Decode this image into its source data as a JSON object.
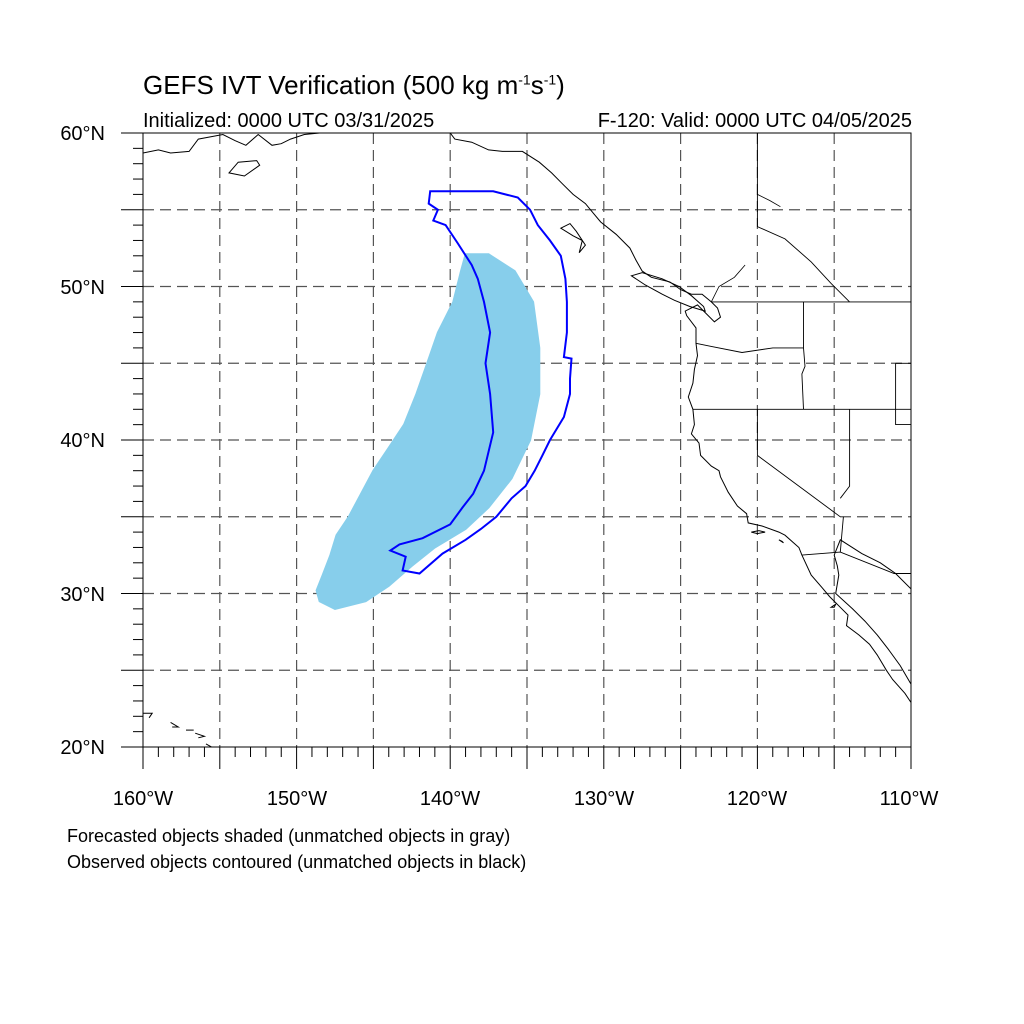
{
  "title": {
    "main": "GEFS IVT Verification (500 kg m",
    "exp1": "-1",
    "mid": "s",
    "exp2": "-1",
    "end": ")"
  },
  "initialized": "Initialized: 0000 UTC 03/31/2025",
  "valid": "F-120: Valid: 0000 UTC 04/05/2025",
  "lat_labels": [
    "60°N",
    "50°N",
    "40°N",
    "30°N",
    "20°N"
  ],
  "lon_labels": [
    "160°W",
    "150°W",
    "140°W",
    "130°W",
    "120°W",
    "110°W"
  ],
  "captions": {
    "forecast": "Forecasted objects shaded (unmatched objects in gray)",
    "observed": "Observed objects contoured (unmatched objects in black)"
  },
  "map": {
    "lat_range": [
      20,
      60
    ],
    "lon_range": [
      -160,
      -110
    ],
    "grid": true,
    "forecast_color": "#87ceeb",
    "observed_color": "#0000ff",
    "forecast_object": [
      [
        -148.5,
        29.5
      ],
      [
        -147.5,
        29
      ],
      [
        -145.5,
        29.5
      ],
      [
        -144,
        30.5
      ],
      [
        -142.5,
        31.8
      ],
      [
        -141,
        33
      ],
      [
        -139,
        34.2
      ],
      [
        -137.5,
        35.6
      ],
      [
        -136,
        37.5
      ],
      [
        -134.8,
        40
      ],
      [
        -134.2,
        43
      ],
      [
        -134.2,
        46
      ],
      [
        -134.6,
        49
      ],
      [
        -135.8,
        51
      ],
      [
        -137.5,
        52.1
      ],
      [
        -139,
        52.1
      ],
      [
        -139.3,
        51
      ],
      [
        -139.8,
        49
      ],
      [
        -140.8,
        47
      ],
      [
        -141.5,
        45
      ],
      [
        -142.2,
        43
      ],
      [
        -143,
        41
      ],
      [
        -144,
        39.5
      ],
      [
        -145,
        38
      ],
      [
        -145.8,
        36.5
      ],
      [
        -146.6,
        35
      ],
      [
        -147.4,
        33.8
      ],
      [
        -147.8,
        32.5
      ],
      [
        -148.3,
        31.2
      ],
      [
        -148.7,
        30.2
      ]
    ],
    "observed_object": [
      [
        -141.3,
        56.2
      ],
      [
        -137.2,
        56.2
      ],
      [
        -135.6,
        55.8
      ],
      [
        -134.8,
        55
      ],
      [
        -134.3,
        54
      ],
      [
        -133.5,
        53
      ],
      [
        -132.8,
        52
      ],
      [
        -132.5,
        50.5
      ],
      [
        -132.4,
        49
      ],
      [
        -132.4,
        47
      ],
      [
        -132.6,
        45.4
      ],
      [
        -132.1,
        45.3
      ],
      [
        -132.2,
        44
      ],
      [
        -132.2,
        43
      ],
      [
        -132.6,
        41.5
      ],
      [
        -133.5,
        40
      ],
      [
        -134,
        39
      ],
      [
        -134.5,
        38
      ],
      [
        -135.1,
        37
      ],
      [
        -136,
        36.2
      ],
      [
        -137,
        35
      ],
      [
        -138,
        34.2
      ],
      [
        -139,
        33.5
      ],
      [
        -140.5,
        32.6
      ],
      [
        -142,
        31.3
      ],
      [
        -143.1,
        31.5
      ],
      [
        -142.9,
        32.4
      ],
      [
        -143.9,
        32.8
      ],
      [
        -143.3,
        33.2
      ],
      [
        -141.8,
        33.6
      ],
      [
        -140,
        34.5
      ],
      [
        -139.2,
        35.6
      ],
      [
        -138.5,
        36.5
      ],
      [
        -137.8,
        38
      ],
      [
        -137.2,
        40.5
      ],
      [
        -137.4,
        43
      ],
      [
        -137.7,
        45
      ],
      [
        -137.4,
        47
      ],
      [
        -137.8,
        49
      ],
      [
        -138.2,
        50.5
      ],
      [
        -138.6,
        51.4
      ],
      [
        -139.5,
        52.8
      ],
      [
        -140.3,
        54
      ],
      [
        -141.1,
        54.3
      ],
      [
        -140.8,
        55
      ],
      [
        -141.4,
        55.4
      ]
    ],
    "coastline": [
      [
        -110,
        30.3
      ],
      [
        -111,
        31.3
      ],
      [
        -112,
        32
      ],
      [
        -113.2,
        32.6
      ],
      [
        -114.6,
        33.5
      ],
      [
        -115,
        32.5
      ],
      [
        -114.8,
        31.8
      ],
      [
        -114.7,
        31.2
      ],
      [
        -114.9,
        30
      ],
      [
        -113.8,
        29
      ],
      [
        -113,
        28.2
      ],
      [
        -112.2,
        27.3
      ],
      [
        -111.5,
        26.4
      ],
      [
        -110.7,
        25.3
      ],
      [
        -110,
        24.1
      ],
      [
        -110,
        22.9
      ],
      [
        -110.4,
        23.5
      ],
      [
        -111.2,
        24.4
      ],
      [
        -111.6,
        25
      ],
      [
        -112.2,
        26
      ],
      [
        -112.7,
        26.7
      ],
      [
        -113.4,
        27.3
      ],
      [
        -114.2,
        27.9
      ],
      [
        -114.1,
        28.6
      ],
      [
        -114.7,
        29.2
      ],
      [
        -115.3,
        29.8
      ],
      [
        -115.8,
        30.4
      ],
      [
        -116.5,
        31.2
      ],
      [
        -117.1,
        32.5
      ],
      [
        -117.3,
        33
      ],
      [
        -118.2,
        33.8
      ],
      [
        -118.6,
        34
      ],
      [
        -119.7,
        34.4
      ],
      [
        -120.6,
        34.6
      ],
      [
        -120.7,
        35.2
      ],
      [
        -121.3,
        35.7
      ],
      [
        -121.9,
        36.6
      ],
      [
        -122.4,
        37.6
      ],
      [
        -122.5,
        38
      ],
      [
        -123,
        38.3
      ],
      [
        -123.7,
        39
      ],
      [
        -123.8,
        39.8
      ],
      [
        -124.3,
        40.4
      ],
      [
        -124.1,
        41
      ],
      [
        -124.2,
        42
      ],
      [
        -124.5,
        42.8
      ],
      [
        -124.2,
        43.7
      ],
      [
        -124.1,
        44.6
      ],
      [
        -123.9,
        45.5
      ],
      [
        -124,
        46.3
      ],
      [
        -124,
        47.3
      ],
      [
        -124.6,
        48.1
      ],
      [
        -124.7,
        48.4
      ],
      [
        -123.9,
        48.8
      ],
      [
        -123.3,
        48.2
      ],
      [
        -122.8,
        47.7
      ],
      [
        -122.4,
        48
      ],
      [
        -122.6,
        48.6
      ],
      [
        -123,
        49
      ],
      [
        -123.6,
        49.5
      ],
      [
        -124.3,
        49.5
      ],
      [
        -125,
        49.8
      ],
      [
        -125.7,
        50.3
      ],
      [
        -126.9,
        50.6
      ],
      [
        -127.5,
        51
      ],
      [
        -127.9,
        51.7
      ],
      [
        -128.3,
        52.5
      ],
      [
        -129.2,
        53.4
      ],
      [
        -130.2,
        54.2
      ],
      [
        -130.7,
        54.8
      ],
      [
        -131.2,
        55.4
      ],
      [
        -132,
        56
      ],
      [
        -132.7,
        56.7
      ],
      [
        -133.4,
        57.4
      ],
      [
        -134.2,
        58.1
      ],
      [
        -135.3,
        58.8
      ],
      [
        -136.6,
        58.8
      ],
      [
        -137.5,
        58.9
      ],
      [
        -138.6,
        59.4
      ],
      [
        -139.7,
        59.6
      ],
      [
        -140,
        60
      ]
    ],
    "islands": [
      [
        [
          -115.2,
          29.1
        ],
        [
          -114.9,
          29.3
        ],
        [
          -115,
          29.1
        ]
      ],
      [
        [
          -119.5,
          34
        ],
        [
          -119.9,
          34.1
        ],
        [
          -120.4,
          34
        ],
        [
          -120,
          33.9
        ]
      ],
      [
        [
          -118.4,
          33.4
        ],
        [
          -118.6,
          33.5
        ],
        [
          -118.3,
          33.3
        ]
      ],
      [
        [
          -131.4,
          53
        ],
        [
          -132,
          53.3
        ],
        [
          -132.8,
          53.8
        ],
        [
          -132.2,
          54.1
        ],
        [
          -131.8,
          53.6
        ],
        [
          -131.2,
          52.7
        ],
        [
          -131.6,
          52.2
        ]
      ],
      [
        [
          -123.4,
          48.4
        ],
        [
          -124.4,
          48.7
        ],
        [
          -125.4,
          49.1
        ],
        [
          -126.2,
          49.5
        ],
        [
          -127.3,
          50.1
        ],
        [
          -128.2,
          50.7
        ],
        [
          -127.5,
          50.9
        ],
        [
          -126.2,
          50.5
        ],
        [
          -125.1,
          50
        ],
        [
          -124.3,
          49.4
        ],
        [
          -123.5,
          48.7
        ]
      ]
    ],
    "borders": [
      [
        [
          -123,
          49
        ],
        [
          -110,
          49
        ]
      ],
      [
        [
          -124.2,
          42
        ],
        [
          -110,
          42
        ]
      ],
      [
        [
          -120,
          42
        ],
        [
          -120,
          39
        ],
        [
          -114.6,
          35
        ]
      ],
      [
        [
          -117,
          49
        ],
        [
          -117,
          46
        ],
        [
          -116.9,
          44.8
        ],
        [
          -117.1,
          44.3
        ],
        [
          -117,
          42
        ]
      ],
      [
        [
          -114,
          42
        ],
        [
          -114,
          37
        ],
        [
          -114.6,
          36.2
        ]
      ],
      [
        [
          -124,
          46.3
        ],
        [
          -123,
          46.1
        ],
        [
          -121,
          45.7
        ],
        [
          -119,
          46
        ],
        [
          -117,
          46
        ]
      ],
      [
        [
          -117.1,
          32.5
        ],
        [
          -114.6,
          32.7
        ],
        [
          -111.1,
          31.3
        ],
        [
          -110,
          31.3
        ]
      ],
      [
        [
          -111,
          45
        ],
        [
          -111,
          41
        ],
        [
          -110,
          41
        ]
      ],
      [
        [
          -110,
          45
        ],
        [
          -111,
          45
        ]
      ],
      [
        [
          -114.6,
          32.7
        ],
        [
          -114.5,
          33.9
        ],
        [
          -114.4,
          35
        ]
      ]
    ],
    "rivers": [
      [
        [
          -123,
          49
        ],
        [
          -122.5,
          50
        ],
        [
          -121.5,
          50.6
        ],
        [
          -120.8,
          51.4
        ]
      ],
      [
        [
          -120,
          56
        ],
        [
          -119.2,
          55.6
        ],
        [
          -118.5,
          55.2
        ]
      ]
    ],
    "hawaii": [
      [
        [
          -160.2,
          22.2
        ],
        [
          -159.4,
          22.2
        ],
        [
          -159.6,
          21.9
        ]
      ],
      [
        [
          -158.2,
          21.6
        ],
        [
          -157.7,
          21.3
        ],
        [
          -158.1,
          21.3
        ]
      ],
      [
        [
          -157.2,
          21.1
        ],
        [
          -156.7,
          21.1
        ]
      ],
      [
        [
          -156.6,
          20.9
        ],
        [
          -156,
          20.7
        ],
        [
          -156.4,
          20.6
        ]
      ],
      [
        [
          -155.9,
          20.2
        ],
        [
          -155,
          19.7
        ],
        [
          -155.3,
          19.2
        ],
        [
          -155.9,
          19.5
        ]
      ]
    ],
    "alaska": [
      [
        -160,
        58.7
      ],
      [
        -159,
        58.9
      ],
      [
        -158.2,
        58.7
      ],
      [
        -157,
        58.8
      ],
      [
        -156.4,
        59.6
      ],
      [
        -154.8,
        59.9
      ],
      [
        -154,
        59.5
      ],
      [
        -153.3,
        59.2
      ],
      [
        -152.5,
        59.9
      ],
      [
        -151.6,
        59.2
      ],
      [
        -151,
        59.3
      ],
      [
        -150.4,
        59.6
      ],
      [
        -149.5,
        59.9
      ],
      [
        -148.5,
        60
      ]
    ],
    "kodiak": [
      [
        -152.4,
        57.9
      ],
      [
        -153.4,
        57.2
      ],
      [
        -154.4,
        57.4
      ],
      [
        -153.8,
        58.1
      ],
      [
        -152.6,
        58.2
      ]
    ],
    "yukon_border": [
      [
        -141,
        60
      ],
      [
        -141,
        60.5
      ]
    ],
    "bc_border": [
      [
        -120,
        60
      ],
      [
        -120,
        53.9
      ],
      [
        -118.2,
        53.1
      ],
      [
        -116.5,
        51.6
      ],
      [
        -115.2,
        50.2
      ],
      [
        -114,
        49
      ]
    ]
  }
}
